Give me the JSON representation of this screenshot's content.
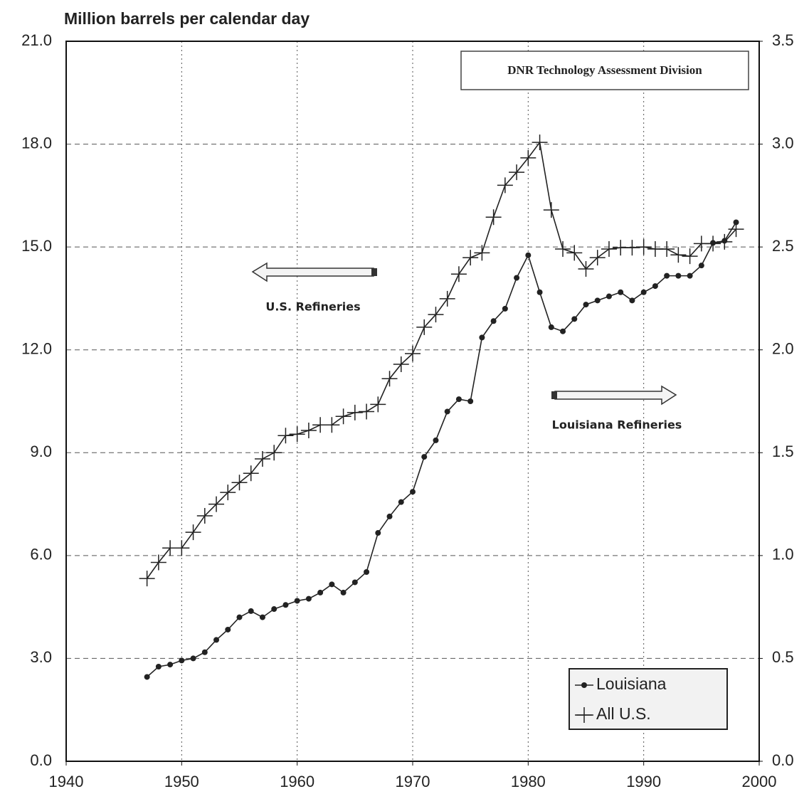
{
  "chart_data": {
    "type": "line",
    "ylabel": "Million barrels per calendar day",
    "annotations": [
      "DNR Technology Assessment Division",
      "U.S. Refineries",
      "Louisiana Refineries"
    ],
    "x": [
      1947,
      1948,
      1949,
      1950,
      1951,
      1952,
      1953,
      1954,
      1955,
      1956,
      1957,
      1958,
      1959,
      1960,
      1961,
      1962,
      1963,
      1964,
      1965,
      1966,
      1967,
      1968,
      1969,
      1970,
      1971,
      1972,
      1973,
      1974,
      1975,
      1976,
      1977,
      1978,
      1979,
      1980,
      1981,
      1982,
      1983,
      1984,
      1985,
      1986,
      1987,
      1988,
      1989,
      1990,
      1991,
      1992,
      1993,
      1994,
      1995,
      1996,
      1997,
      1998
    ],
    "series": [
      {
        "name": "Louisiana",
        "color": "#222222",
        "marker": "dot",
        "axis": "y2",
        "values": [
          0.41,
          0.46,
          0.47,
          0.49,
          0.5,
          0.53,
          0.59,
          0.64,
          0.7,
          0.73,
          0.7,
          0.74,
          0.76,
          0.78,
          0.79,
          0.82,
          0.86,
          0.82,
          0.87,
          0.92,
          1.11,
          1.19,
          1.26,
          1.31,
          1.48,
          1.56,
          1.7,
          1.76,
          1.75,
          2.06,
          2.14,
          2.2,
          2.35,
          2.46,
          2.28,
          2.11,
          2.09,
          2.15,
          2.22,
          2.24,
          2.26,
          2.28,
          2.24,
          2.28,
          2.31,
          2.36,
          2.36,
          2.36,
          2.41,
          2.52,
          2.53,
          2.62
        ]
      },
      {
        "name": "All U.S.",
        "color": "#222222",
        "marker": "plus",
        "values": [
          5.33,
          5.8,
          6.22,
          6.22,
          6.68,
          7.16,
          7.5,
          7.84,
          8.13,
          8.4,
          8.82,
          9.0,
          9.5,
          9.54,
          9.65,
          9.81,
          9.81,
          10.06,
          10.17,
          10.2,
          10.41,
          11.16,
          11.58,
          11.89,
          12.66,
          13.03,
          13.49,
          14.21,
          14.69,
          14.83,
          15.87,
          16.8,
          17.18,
          17.6,
          18.05,
          16.08,
          14.94,
          14.83,
          14.36,
          14.69,
          14.94,
          14.98,
          14.98,
          15.0,
          14.94,
          14.94,
          14.77,
          14.73,
          15.1,
          15.1,
          15.15,
          15.52
        ]
      }
    ],
    "xlim": [
      1940,
      2000
    ],
    "xticks": [
      1940,
      1950,
      1960,
      1970,
      1980,
      1990,
      2000
    ],
    "ylim": [
      0,
      21
    ],
    "yticks": [
      {
        "value": 0,
        "label": "0.0"
      },
      {
        "value": 3,
        "label": "3.0"
      },
      {
        "value": 6,
        "label": "6.0"
      },
      {
        "value": 9,
        "label": "9.0"
      },
      {
        "value": 12,
        "label": "12.0"
      },
      {
        "value": 15,
        "label": "15.0"
      },
      {
        "value": 18,
        "label": "18.0"
      },
      {
        "value": 21,
        "label": "21.0"
      }
    ],
    "y2lim": [
      0,
      3.5
    ],
    "y2ticks": [
      {
        "value": 0,
        "label": "0.0"
      },
      0.5,
      {
        "value": 1,
        "label": "1.0"
      },
      1.5,
      {
        "value": 2,
        "label": "2.0"
      },
      2.5,
      {
        "value": 3,
        "label": "3.0"
      },
      3.5
    ],
    "grid": true,
    "legend": "lower right"
  }
}
